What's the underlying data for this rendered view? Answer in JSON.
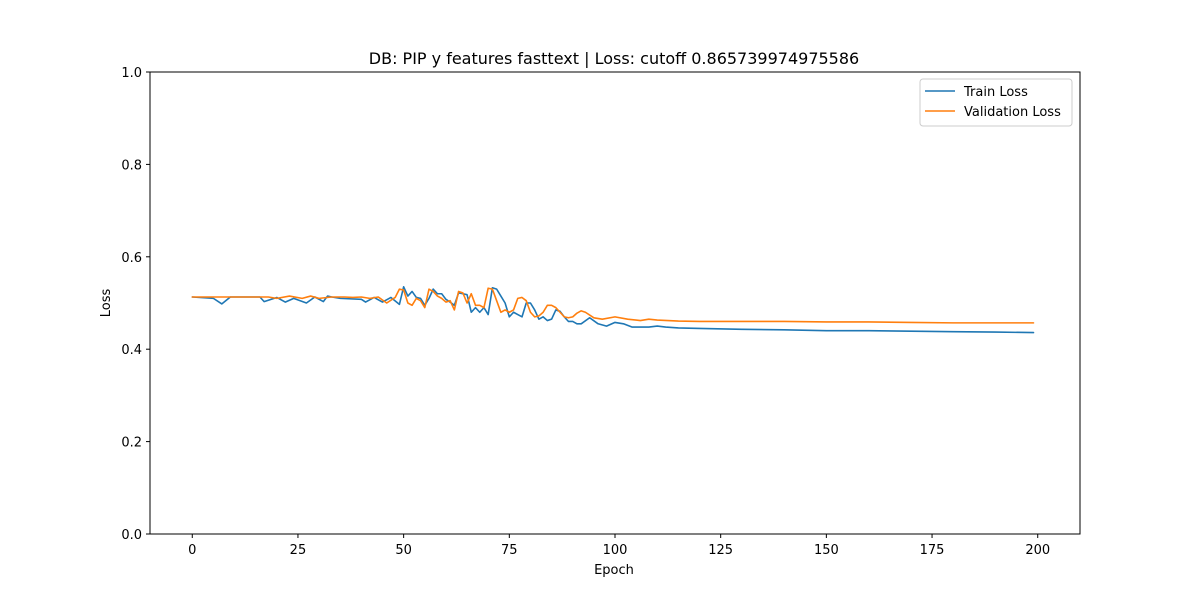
{
  "chart_data": {
    "type": "line",
    "title": "DB: PIP y features fasttext | Loss: cutoff 0.865739974975586",
    "xlabel": "Epoch",
    "ylabel": "Loss",
    "xlim": [
      -10,
      210
    ],
    "ylim": [
      0.0,
      1.0
    ],
    "xticks": [
      0,
      25,
      50,
      75,
      100,
      125,
      150,
      175,
      200
    ],
    "xtick_labels": [
      "0",
      "25",
      "50",
      "75",
      "100",
      "125",
      "150",
      "175",
      "200"
    ],
    "yticks": [
      0.0,
      0.2,
      0.4,
      0.6,
      0.8,
      1.0
    ],
    "ytick_labels": [
      "0.0",
      "0.2",
      "0.4",
      "0.6",
      "0.8",
      "1.0"
    ],
    "grid": false,
    "legend_position": "top-right",
    "series": [
      {
        "name": "Train Loss",
        "color": "#1f77b4",
        "x": [
          0,
          5,
          7,
          9,
          16,
          17,
          20,
          22,
          24,
          27,
          29,
          31,
          32,
          33,
          35,
          40,
          41,
          43,
          45,
          47,
          49,
          50,
          51,
          52,
          53,
          54,
          55,
          56,
          57,
          58,
          59,
          60,
          61,
          62,
          63,
          64,
          65,
          66,
          67,
          68,
          69,
          70,
          71,
          72,
          73,
          74,
          75,
          76,
          77,
          78,
          79,
          80,
          81,
          82,
          83,
          84,
          85,
          86,
          87,
          88,
          89,
          90,
          91,
          92,
          94,
          96,
          98,
          100,
          102,
          104,
          106,
          108,
          110,
          112,
          115,
          120,
          130,
          140,
          150,
          160,
          170,
          180,
          190,
          199
        ],
        "y": [
          0.513,
          0.51,
          0.498,
          0.513,
          0.513,
          0.503,
          0.512,
          0.502,
          0.51,
          0.5,
          0.513,
          0.503,
          0.515,
          0.513,
          0.51,
          0.508,
          0.502,
          0.512,
          0.502,
          0.512,
          0.497,
          0.535,
          0.515,
          0.525,
          0.512,
          0.51,
          0.495,
          0.51,
          0.53,
          0.52,
          0.52,
          0.508,
          0.502,
          0.495,
          0.522,
          0.52,
          0.518,
          0.48,
          0.49,
          0.48,
          0.49,
          0.475,
          0.533,
          0.53,
          0.515,
          0.5,
          0.47,
          0.48,
          0.475,
          0.47,
          0.5,
          0.5,
          0.485,
          0.465,
          0.47,
          0.462,
          0.465,
          0.485,
          0.482,
          0.47,
          0.46,
          0.46,
          0.455,
          0.455,
          0.468,
          0.455,
          0.45,
          0.458,
          0.455,
          0.448,
          0.448,
          0.448,
          0.45,
          0.448,
          0.446,
          0.445,
          0.443,
          0.442,
          0.44,
          0.44,
          0.439,
          0.438,
          0.437,
          0.436
        ]
      },
      {
        "name": "Validation Loss",
        "color": "#ff7f0e",
        "x": [
          0,
          3,
          6,
          9,
          12,
          15,
          18,
          20,
          23,
          26,
          28,
          30,
          33,
          36,
          38,
          40,
          42,
          44,
          46,
          48,
          49,
          50,
          51,
          52,
          53,
          54,
          55,
          56,
          57,
          58,
          59,
          60,
          61,
          62,
          63,
          64,
          65,
          66,
          67,
          68,
          69,
          70,
          71,
          72,
          73,
          74,
          75,
          76,
          77,
          78,
          79,
          80,
          81,
          82,
          83,
          84,
          85,
          86,
          87,
          88,
          89,
          90,
          91,
          92,
          93,
          95,
          97,
          100,
          103,
          106,
          108,
          110,
          115,
          120,
          130,
          140,
          150,
          160,
          170,
          180,
          190,
          199
        ],
        "y": [
          0.513,
          0.513,
          0.513,
          0.513,
          0.513,
          0.513,
          0.513,
          0.51,
          0.515,
          0.51,
          0.515,
          0.51,
          0.513,
          0.513,
          0.512,
          0.513,
          0.51,
          0.513,
          0.5,
          0.512,
          0.53,
          0.528,
          0.5,
          0.495,
          0.51,
          0.505,
          0.49,
          0.53,
          0.525,
          0.515,
          0.51,
          0.502,
          0.505,
          0.485,
          0.525,
          0.522,
          0.5,
          0.52,
          0.495,
          0.495,
          0.49,
          0.532,
          0.53,
          0.505,
          0.48,
          0.485,
          0.48,
          0.485,
          0.51,
          0.512,
          0.505,
          0.48,
          0.47,
          0.472,
          0.48,
          0.495,
          0.495,
          0.49,
          0.48,
          0.47,
          0.468,
          0.47,
          0.478,
          0.483,
          0.48,
          0.468,
          0.465,
          0.47,
          0.465,
          0.462,
          0.465,
          0.463,
          0.461,
          0.46,
          0.46,
          0.46,
          0.459,
          0.459,
          0.458,
          0.457,
          0.457,
          0.457
        ]
      }
    ]
  }
}
